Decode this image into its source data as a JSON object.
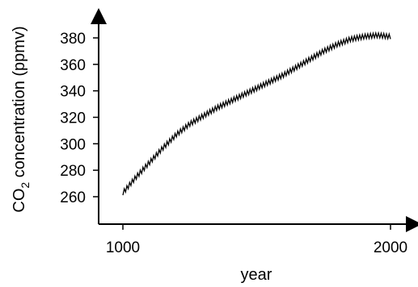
{
  "chart_data": {
    "type": "line",
    "title": "",
    "xlabel": "year",
    "ylabel": {
      "prefix": "CO",
      "subscript": "2",
      "suffix": " concentration (ppmv)"
    },
    "xlim": [
      1000,
      2000
    ],
    "ylim": [
      250,
      385
    ],
    "xticks": [
      {
        "value": 1000,
        "label": "1000"
      },
      {
        "value": 2000,
        "label": "2000"
      }
    ],
    "yticks": [
      {
        "value": 260,
        "label": "260"
      },
      {
        "value": 280,
        "label": "280"
      },
      {
        "value": 300,
        "label": "300"
      },
      {
        "value": 320,
        "label": "320"
      },
      {
        "value": 340,
        "label": "340"
      },
      {
        "value": 360,
        "label": "360"
      },
      {
        "value": 380,
        "label": "380"
      }
    ],
    "grid": false,
    "legend": "none",
    "line_color": "#000000",
    "series": [
      {
        "style": "zigzag (seasonal oscillation)",
        "x": [
          1000,
          1050,
          1100,
          1150,
          1200,
          1250,
          1300,
          1350,
          1400,
          1450,
          1500,
          1550,
          1600,
          1650,
          1700,
          1750,
          1800,
          1850,
          1900,
          1950,
          2000
        ],
        "y": [
          263,
          275,
          286,
          297,
          307,
          315,
          321,
          327,
          332,
          337,
          342,
          347,
          352,
          358,
          364,
          370,
          375,
          379,
          381,
          382,
          381
        ]
      }
    ]
  }
}
